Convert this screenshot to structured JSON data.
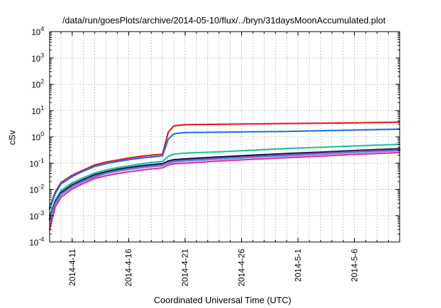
{
  "chart_data": {
    "type": "line",
    "title": "/data/run/goesPlots/archive/2014-05-10/flux/../bryn/31daysMoonAccumulated.plot",
    "xlabel": "Coordinated Universal Time (UTC)",
    "ylabel": "cSv",
    "x_axis": "date",
    "xlim": [
      "2014-04-09",
      "2014-05-10"
    ],
    "y_scale": "log",
    "ylim": [
      0.0001,
      10000
    ],
    "grid": true,
    "x_ticks": [
      "2014-4-11",
      "2014-4-16",
      "2014-4-21",
      "2014-4-26",
      "2014-5-1",
      "2014-5-6"
    ],
    "y_ticks": [
      {
        "value": 0.0001,
        "mantissa": "10",
        "exponent": "-4"
      },
      {
        "value": 0.001,
        "mantissa": "10",
        "exponent": "-3"
      },
      {
        "value": 0.01,
        "mantissa": "10",
        "exponent": "-2"
      },
      {
        "value": 0.1,
        "mantissa": "10",
        "exponent": "-1"
      },
      {
        "value": 1,
        "mantissa": "10",
        "exponent": "0"
      },
      {
        "value": 10,
        "mantissa": "10",
        "exponent": "1"
      },
      {
        "value": 100,
        "mantissa": "10",
        "exponent": "2"
      },
      {
        "value": 1000,
        "mantissa": "10",
        "exponent": "3"
      },
      {
        "value": 10000,
        "mantissa": "10",
        "exponent": "4"
      }
    ],
    "x": [
      "2014-04-09",
      "2014-04-09T12:00",
      "2014-04-10",
      "2014-04-11",
      "2014-04-12",
      "2014-04-13",
      "2014-04-14",
      "2014-04-15",
      "2014-04-16",
      "2014-04-17",
      "2014-04-18",
      "2014-04-19",
      "2014-04-19T12:00",
      "2014-04-20",
      "2014-04-21",
      "2014-04-24",
      "2014-04-27",
      "2014-04-30",
      "2014-05-03",
      "2014-05-06",
      "2014-05-10"
    ],
    "series": [
      {
        "color": "#e41a1c",
        "values": [
          0.002,
          0.008,
          0.018,
          0.035,
          0.055,
          0.085,
          0.11,
          0.13,
          0.155,
          0.18,
          0.2,
          0.22,
          1.5,
          2.6,
          2.9,
          3.0,
          3.1,
          3.2,
          3.3,
          3.4,
          3.6
        ]
      },
      {
        "color": "#1f6fe5",
        "values": [
          0.0018,
          0.007,
          0.016,
          0.031,
          0.05,
          0.075,
          0.095,
          0.115,
          0.135,
          0.155,
          0.17,
          0.19,
          0.8,
          1.3,
          1.45,
          1.5,
          1.55,
          1.6,
          1.7,
          1.8,
          1.95
        ]
      },
      {
        "color": "#1fc49b",
        "values": [
          0.001,
          0.004,
          0.009,
          0.018,
          0.028,
          0.042,
          0.055,
          0.067,
          0.079,
          0.092,
          0.105,
          0.115,
          0.18,
          0.22,
          0.24,
          0.27,
          0.31,
          0.36,
          0.4,
          0.45,
          0.52
        ]
      },
      {
        "color": "#0a0a4a",
        "values": [
          0.0008,
          0.0033,
          0.0075,
          0.015,
          0.024,
          0.036,
          0.047,
          0.058,
          0.068,
          0.078,
          0.087,
          0.095,
          0.12,
          0.135,
          0.145,
          0.17,
          0.2,
          0.23,
          0.26,
          0.3,
          0.35
        ]
      },
      {
        "color": "#7b3fa0",
        "values": [
          0.0007,
          0.003,
          0.0068,
          0.0135,
          0.022,
          0.033,
          0.043,
          0.053,
          0.062,
          0.071,
          0.079,
          0.087,
          0.11,
          0.122,
          0.131,
          0.155,
          0.18,
          0.21,
          0.24,
          0.28,
          0.32
        ]
      },
      {
        "color": "#5a8fd8",
        "values": [
          0.00065,
          0.0028,
          0.0062,
          0.0125,
          0.02,
          0.03,
          0.04,
          0.049,
          0.057,
          0.065,
          0.073,
          0.08,
          0.1,
          0.112,
          0.12,
          0.142,
          0.165,
          0.19,
          0.22,
          0.255,
          0.295
        ]
      },
      {
        "color": "#e62aa8",
        "values": [
          0.0003,
          0.0022,
          0.005,
          0.0105,
          0.017,
          0.026,
          0.033,
          0.04,
          0.047,
          0.053,
          0.06,
          0.066,
          0.085,
          0.095,
          0.1,
          0.12,
          0.14,
          0.16,
          0.185,
          0.215,
          0.25
        ]
      }
    ]
  }
}
